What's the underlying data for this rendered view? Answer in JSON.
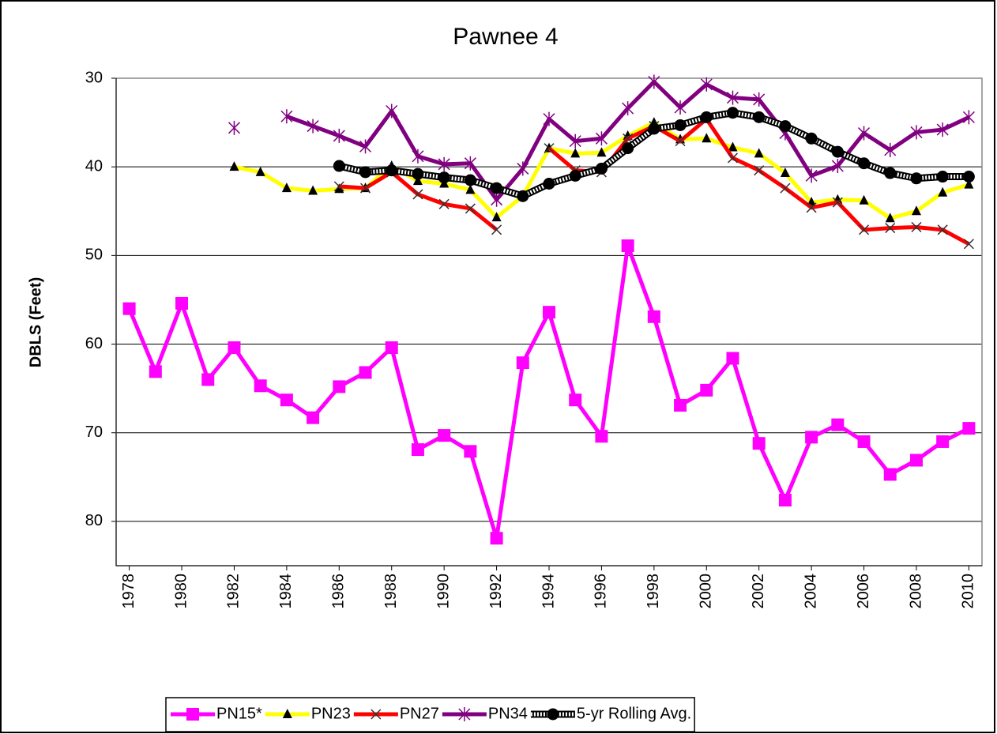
{
  "chart_data": {
    "type": "line",
    "title": "Pawnee 4",
    "y_label": "DBLS (Feet)",
    "x": [
      1978,
      1979,
      1980,
      1981,
      1982,
      1983,
      1984,
      1985,
      1986,
      1987,
      1988,
      1989,
      1990,
      1991,
      1992,
      1993,
      1994,
      1995,
      1996,
      1997,
      1998,
      1999,
      2000,
      2001,
      2002,
      2003,
      2004,
      2005,
      2006,
      2007,
      2008,
      2009,
      2010
    ],
    "xlim": [
      1977.5,
      2010.5
    ],
    "xticks": [
      1978,
      1980,
      1982,
      1984,
      1986,
      1988,
      1990,
      1992,
      1994,
      1996,
      1998,
      2000,
      2002,
      2004,
      2006,
      2008,
      2010
    ],
    "ylim": [
      30,
      85
    ],
    "y_inverted": true,
    "yticks": [
      30,
      40,
      50,
      60,
      70,
      80
    ],
    "grid": true,
    "legend": "bottom",
    "series": [
      {
        "name": "PN15*",
        "color": "#ff00ff",
        "marker": "square",
        "values": [
          56.0,
          63.1,
          55.4,
          64.0,
          60.4,
          64.7,
          66.3,
          68.3,
          64.8,
          63.2,
          60.4,
          71.9,
          70.3,
          72.1,
          81.9,
          62.1,
          56.4,
          66.3,
          70.4,
          48.9,
          56.9,
          66.9,
          65.2,
          61.6,
          71.2,
          77.6,
          70.5,
          69.1,
          71.0,
          74.7,
          73.1,
          71.0,
          69.5
        ]
      },
      {
        "name": "PN23",
        "color": "#ffff00",
        "marker": "triangle",
        "values": [
          null,
          null,
          null,
          null,
          40.0,
          40.6,
          42.4,
          42.7,
          42.5,
          42.4,
          39.9,
          41.6,
          41.9,
          42.6,
          45.7,
          43.3,
          37.9,
          38.5,
          38.4,
          36.5,
          35.0,
          36.9,
          36.8,
          37.8,
          38.5,
          40.7,
          44.0,
          43.7,
          43.8,
          45.8,
          45.0,
          42.9,
          42.0
        ]
      },
      {
        "name": "PN27",
        "color": "#ff0000",
        "marker": "x",
        "values": [
          null,
          null,
          null,
          null,
          null,
          null,
          null,
          null,
          42.2,
          42.4,
          40.6,
          43.1,
          44.2,
          44.7,
          47.1,
          null,
          37.9,
          40.4,
          40.6,
          36.8,
          35.4,
          37.1,
          34.6,
          39.0,
          40.4,
          42.4,
          44.6,
          44.0,
          47.1,
          46.9,
          46.8,
          47.1,
          48.7
        ]
      },
      {
        "name": "PN34",
        "color": "#800080",
        "marker": "star",
        "values": [
          null,
          null,
          null,
          null,
          35.6,
          null,
          34.3,
          35.4,
          36.5,
          37.7,
          33.7,
          38.8,
          39.7,
          39.6,
          43.7,
          40.2,
          34.6,
          37.1,
          36.8,
          33.4,
          30.4,
          33.3,
          30.7,
          32.2,
          32.4,
          36.2,
          41.0,
          39.9,
          36.2,
          38.1,
          36.1,
          35.8,
          34.4
        ]
      },
      {
        "name": "5-yr Rolling Avg.",
        "color": "#000000",
        "marker": "circle",
        "dotted": true,
        "values": [
          null,
          null,
          null,
          null,
          null,
          null,
          null,
          null,
          39.9,
          40.6,
          40.4,
          40.8,
          41.2,
          41.5,
          42.4,
          43.3,
          41.9,
          41.0,
          40.2,
          37.9,
          35.7,
          35.3,
          34.4,
          33.9,
          34.4,
          35.4,
          36.8,
          38.3,
          39.6,
          40.7,
          41.3,
          41.1,
          41.1
        ]
      }
    ]
  }
}
